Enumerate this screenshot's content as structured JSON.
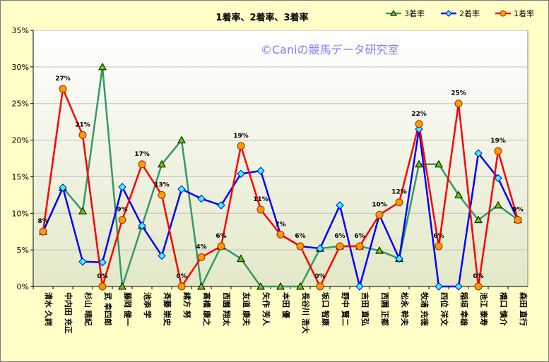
{
  "chart_data": {
    "type": "line",
    "title": "1着率、2着率、3着率",
    "watermark": "©Caniの競馬データ研究室",
    "categories": [
      "清水 久詞",
      "中内田 充正",
      "杉山 晴紀",
      "武 幸四郎",
      "藤岡 健一",
      "池添 学",
      "斉藤 崇史",
      "緒方 努",
      "高橋 康之",
      "西園 翔太",
      "友道 康夫",
      "矢作 芳人",
      "本田 優",
      "長谷川 浩大",
      "坂口 智康",
      "野中 賢二",
      "吉田 直弘",
      "西園 正都",
      "松永 幹夫",
      "牧浦 充徳",
      "四位 洋文",
      "稲垣 幸雄",
      "池江 泰寿",
      "橋口 慎介",
      "森田 直行"
    ],
    "y_ticks": [
      "0%",
      "5%",
      "10%",
      "15%",
      "20%",
      "25%",
      "30%",
      "35%"
    ],
    "ylim": [
      0,
      35
    ],
    "grid": true,
    "legend_position": "top-right",
    "series": [
      {
        "name": "3着率",
        "color": "#339966",
        "marker": "triangle",
        "marker_fill": "#66cc00",
        "values": [
          7.5,
          13.5,
          10.3,
          30,
          0,
          8.3,
          16.7,
          20,
          0,
          5.5,
          3.8,
          0,
          0,
          0,
          5.2,
          5.5,
          5.5,
          4.9,
          3.8,
          16.7,
          16.7,
          12.5,
          9.1,
          11.1,
          9.1
        ]
      },
      {
        "name": "2着率",
        "color": "#0000ff",
        "marker": "diamond",
        "marker_fill": "#33ffff",
        "values": [
          7.5,
          13.5,
          3.4,
          3.3,
          13.6,
          8.3,
          4.2,
          13.3,
          12,
          11.1,
          15.4,
          15.8,
          7.1,
          5.5,
          5.2,
          11.1,
          0,
          9.8,
          3.8,
          21.5,
          0,
          0,
          18.2,
          14.8,
          9.1
        ]
      },
      {
        "name": "1着率",
        "color": "#ff0000",
        "marker": "circle",
        "marker_fill": "#ff9900",
        "values": [
          7.5,
          27,
          20.7,
          0,
          9.1,
          16.7,
          12.5,
          0,
          4,
          5.5,
          19.2,
          10.5,
          7.1,
          5.5,
          0,
          5.5,
          5.5,
          9.8,
          11.5,
          22.2,
          5.5,
          25,
          0,
          18.5,
          9.1
        ]
      }
    ],
    "data_labels_series": "1着率",
    "data_labels": [
      "8%",
      "27%",
      "21%",
      "0%",
      "9%",
      "17%",
      "13%",
      "0%",
      "4%",
      "6%",
      "19%",
      "11%",
      "7%",
      "6%",
      "0%",
      "6%",
      "6%",
      "10%",
      "12%",
      "22%",
      "6%",
      "25%",
      "0%",
      "19%",
      "9%"
    ]
  }
}
